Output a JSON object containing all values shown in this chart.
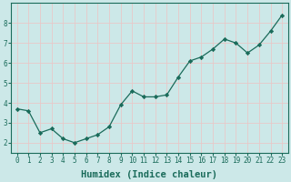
{
  "x": [
    0,
    1,
    2,
    3,
    4,
    5,
    6,
    7,
    8,
    9,
    10,
    11,
    12,
    13,
    14,
    15,
    16,
    17,
    18,
    19,
    20,
    21,
    22,
    23
  ],
  "y": [
    3.7,
    3.6,
    2.5,
    2.7,
    2.2,
    2.0,
    2.2,
    2.4,
    2.8,
    3.9,
    4.6,
    4.3,
    4.3,
    4.4,
    5.3,
    6.1,
    6.3,
    6.7,
    7.2,
    7.0,
    6.5,
    6.9,
    7.6,
    8.4
  ],
  "line_color": "#1a6b5a",
  "marker": "D",
  "marker_size": 2.2,
  "bg_color": "#cce8e8",
  "grid_color": "#e8c8c8",
  "xlabel": "Humidex (Indice chaleur)",
  "ylim": [
    1.5,
    9.0
  ],
  "xlim": [
    -0.5,
    23.5
  ],
  "yticks": [
    2,
    3,
    4,
    5,
    6,
    7,
    8
  ],
  "xticks": [
    0,
    1,
    2,
    3,
    4,
    5,
    6,
    7,
    8,
    9,
    10,
    11,
    12,
    13,
    14,
    15,
    16,
    17,
    18,
    19,
    20,
    21,
    22,
    23
  ],
  "tick_label_fontsize": 5.5,
  "xlabel_fontsize": 7.5,
  "spine_color": "#1a6b5a"
}
